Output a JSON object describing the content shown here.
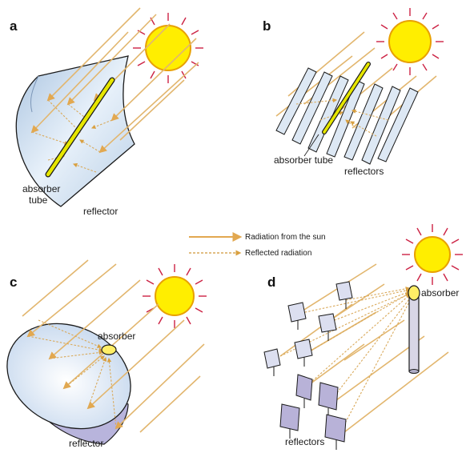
{
  "panels": {
    "a": {
      "letter": "a",
      "absorber_label_1": "absorber",
      "absorber_label_2": "tube",
      "reflector_label": "reflector"
    },
    "b": {
      "letter": "b",
      "absorber_label": "absorber tube",
      "reflectors_label": "reflectors"
    },
    "c": {
      "letter": "c",
      "absorber_label": "absorber",
      "reflector_label": "reflector"
    },
    "d": {
      "letter": "d",
      "absorber_label": "absorber",
      "reflectors_label": "reflectors"
    }
  },
  "legend": {
    "radiation_label": "Radiation from the sun",
    "reflected_label": "Reflected radiation"
  },
  "colors": {
    "sun_fill": "#ffee00",
    "sun_outline": "#e8a000",
    "sun_rays": "#cc2244",
    "radiation": "#e2b66e",
    "reflector_fill": "#cfe0f2",
    "absorber_tube": "#e6e600",
    "dish_rim": "#b8b4dc",
    "heliostat": "#b8b2d8",
    "tower": "#d8d6e6"
  }
}
